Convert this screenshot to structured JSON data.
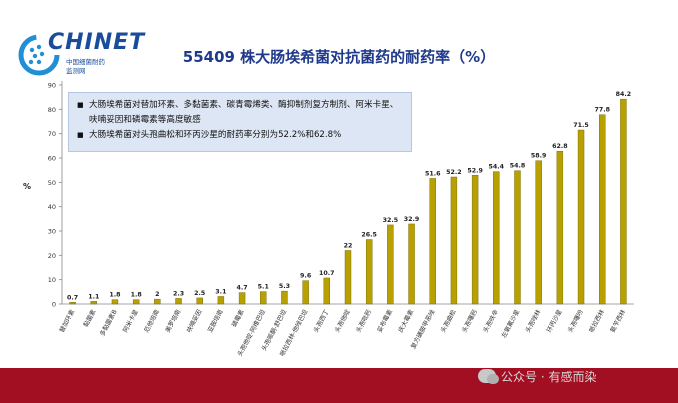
{
  "logo": {
    "name": "CHINET",
    "sub1": "中国细菌耐药",
    "sub2": "监测网"
  },
  "notes": [
    "大肠埃希菌对替加环素、多黏菌素、碳青霉烯类、酶抑制剂复方制剂、阿米卡星、呋喃妥因和磷霉素等高度敏感",
    "大肠埃希菌对头孢曲松和环丙沙星的耐药率分别为52.2%和62.8%"
  ],
  "watermark": "公众号 · 有感而染",
  "colors": {
    "bar": "#b8a000",
    "bar_edge": "#6e6000",
    "title": "#1f3a8a",
    "band": "#a30f22"
  },
  "chart_data": {
    "type": "bar",
    "title": "55409 株大肠埃希菌对抗菌药的耐药率（%）",
    "ylabel": "%",
    "ylim": [
      0,
      90
    ],
    "yticks": [
      0,
      10,
      20,
      30,
      40,
      50,
      60,
      70,
      80,
      90
    ],
    "grid": false,
    "categories": [
      "替加环素",
      "黏菌素",
      "多黏菌素B",
      "阿米卡星",
      "厄他培南",
      "美罗培南",
      "呋喃妥因",
      "亚胺培南",
      "磷霉素",
      "头孢他啶-阿维巴坦",
      "头孢哌酮-舒巴坦",
      "哌拉西林-他唑巴坦",
      "头孢西丁",
      "头孢他啶",
      "头孢吡肟",
      "妥布霉素",
      "庆大霉素",
      "复方磺胺甲恶唑",
      "头孢曲松",
      "头孢噻肟",
      "头孢呋辛",
      "左氧氟沙星",
      "头孢唑林",
      "环丙沙星",
      "头孢噻吩",
      "哌拉西林",
      "氨苄西林"
    ],
    "values": [
      0.7,
      1.1,
      1.8,
      1.8,
      2,
      2.3,
      2.5,
      3.1,
      4.7,
      5.1,
      5.3,
      9.6,
      10.7,
      22,
      26.5,
      32.5,
      32.9,
      51.6,
      52.2,
      52.9,
      54.4,
      54.8,
      58.9,
      62.8,
      71.5,
      77.8,
      84.2
    ],
    "value_labels": [
      "0.7",
      "1.1",
      "1.8",
      "1.8",
      "2",
      "2.3",
      "2.5",
      "3.1",
      "4.7",
      "5.1",
      "5.3",
      "9.6",
      "10.7",
      "22",
      "26.5",
      "32.5",
      "32.9",
      "51.6",
      "52.2",
      "52.9",
      "54.4",
      "54.8",
      "58.9",
      "62.8",
      "71.5",
      "77.8",
      "84.2"
    ]
  }
}
